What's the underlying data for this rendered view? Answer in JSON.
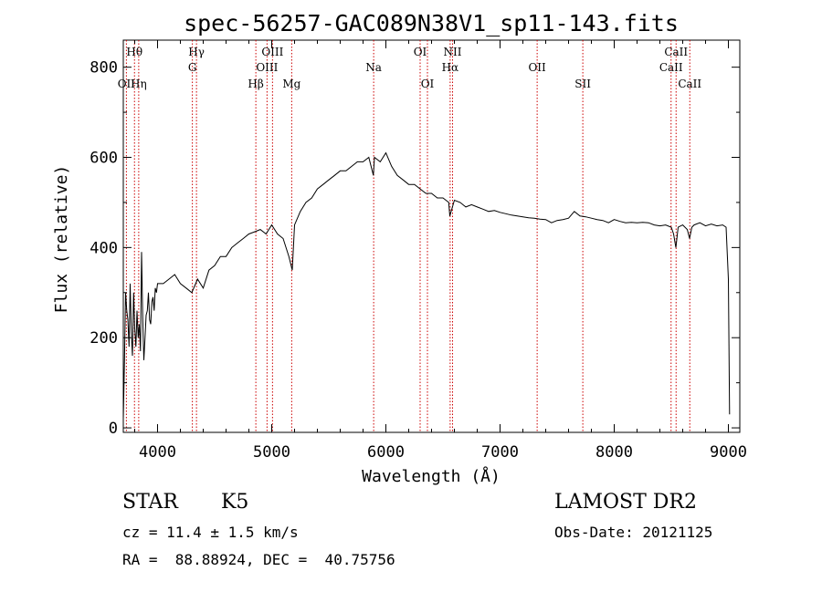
{
  "chart_data": {
    "type": "line",
    "title": "spec-56257-GAC089N38V1_sp11-143.fits",
    "xlabel": "Wavelength (Å)",
    "ylabel": "Flux (relative)",
    "xlim": [
      3700,
      9100
    ],
    "ylim": [
      -10,
      860
    ],
    "x_ticks": [
      4000,
      5000,
      6000,
      7000,
      8000,
      9000
    ],
    "y_ticks": [
      0,
      200,
      400,
      600,
      800
    ],
    "grid": false,
    "line_color": "#000000",
    "marker_color": "#cc0000",
    "series": [
      {
        "x": [
          3700,
          3710,
          3720,
          3730,
          3740,
          3750,
          3760,
          3770,
          3780,
          3790,
          3800,
          3810,
          3820,
          3830,
          3840,
          3850,
          3860,
          3870,
          3880,
          3890,
          3900,
          3910,
          3920,
          3930,
          3940,
          3950,
          3960,
          3970,
          3980,
          3990,
          4000,
          4050,
          4100,
          4150,
          4200,
          4250,
          4300,
          4350,
          4400,
          4450,
          4500,
          4550,
          4600,
          4650,
          4700,
          4750,
          4800,
          4850,
          4900,
          4950,
          5000,
          5050,
          5100,
          5150,
          5180,
          5200,
          5250,
          5300,
          5350,
          5400,
          5450,
          5500,
          5550,
          5600,
          5650,
          5700,
          5750,
          5800,
          5850,
          5890,
          5900,
          5950,
          6000,
          6050,
          6100,
          6150,
          6200,
          6250,
          6300,
          6350,
          6400,
          6450,
          6500,
          6550,
          6560,
          6600,
          6650,
          6700,
          6750,
          6800,
          6850,
          6900,
          6950,
          7000,
          7050,
          7100,
          7150,
          7200,
          7250,
          7300,
          7350,
          7400,
          7450,
          7500,
          7550,
          7600,
          7650,
          7700,
          7750,
          7800,
          7850,
          7900,
          7950,
          8000,
          8050,
          8100,
          8150,
          8200,
          8250,
          8300,
          8350,
          8400,
          8450,
          8500,
          8520,
          8540,
          8560,
          8600,
          8640,
          8660,
          8680,
          8700,
          8750,
          8800,
          8850,
          8900,
          8950,
          8980,
          9000,
          9010
        ],
        "y": [
          20,
          150,
          300,
          260,
          240,
          180,
          320,
          210,
          160,
          300,
          220,
          180,
          260,
          200,
          230,
          170,
          390,
          240,
          150,
          200,
          250,
          260,
          300,
          240,
          230,
          280,
          290,
          260,
          310,
          300,
          320,
          320,
          330,
          340,
          320,
          310,
          300,
          330,
          310,
          350,
          360,
          380,
          380,
          400,
          410,
          420,
          430,
          435,
          440,
          430,
          450,
          430,
          420,
          380,
          350,
          450,
          480,
          500,
          510,
          530,
          540,
          550,
          560,
          570,
          570,
          580,
          590,
          590,
          600,
          560,
          600,
          590,
          610,
          580,
          560,
          550,
          540,
          540,
          530,
          520,
          520,
          510,
          510,
          500,
          470,
          505,
          500,
          490,
          495,
          490,
          485,
          480,
          482,
          478,
          475,
          472,
          470,
          468,
          466,
          465,
          463,
          462,
          455,
          460,
          462,
          465,
          480,
          470,
          468,
          465,
          462,
          460,
          455,
          462,
          458,
          455,
          456,
          455,
          456,
          455,
          450,
          448,
          450,
          445,
          430,
          400,
          445,
          450,
          440,
          420,
          445,
          450,
          455,
          448,
          452,
          448,
          450,
          445,
          330,
          30
        ]
      }
    ],
    "lines": [
      {
        "label": "Hθ",
        "x": 3798,
        "row": 1
      },
      {
        "label": "OII",
        "x": 3727,
        "row": 3
      },
      {
        "label": "Hη",
        "x": 3835,
        "row": 3
      },
      {
        "label": "Hγ",
        "x": 4341,
        "row": 1
      },
      {
        "label": "G",
        "x": 4305,
        "row": 2
      },
      {
        "label": "Hβ",
        "x": 4861,
        "row": 3
      },
      {
        "label": "OIII",
        "x": 5007,
        "row": 1
      },
      {
        "label": "OIII",
        "x": 4959,
        "row": 2
      },
      {
        "label": "Mg",
        "x": 5175,
        "row": 3
      },
      {
        "label": "Na",
        "x": 5893,
        "row": 2
      },
      {
        "label": "OI",
        "x": 6300,
        "row": 1
      },
      {
        "label": "OI",
        "x": 6364,
        "row": 3
      },
      {
        "label": "NII",
        "x": 6584,
        "row": 1
      },
      {
        "label": "Hα",
        "x": 6563,
        "row": 2
      },
      {
        "label": "OII",
        "x": 7325,
        "row": 2
      },
      {
        "label": "SII",
        "x": 7725,
        "row": 3
      },
      {
        "label": "CaII",
        "x": 8542,
        "row": 1
      },
      {
        "label": "CaII",
        "x": 8498,
        "row": 2
      },
      {
        "label": "CaII",
        "x": 8662,
        "row": 3
      }
    ]
  },
  "info": {
    "object_class": "STAR",
    "subclass": "K5",
    "survey": "LAMOST DR2",
    "cz": "cz = 11.4 ± 1.5 km/s",
    "obs_date": "Obs-Date: 20121125",
    "coords": "RA =  88.88924, DEC =  40.75756"
  }
}
